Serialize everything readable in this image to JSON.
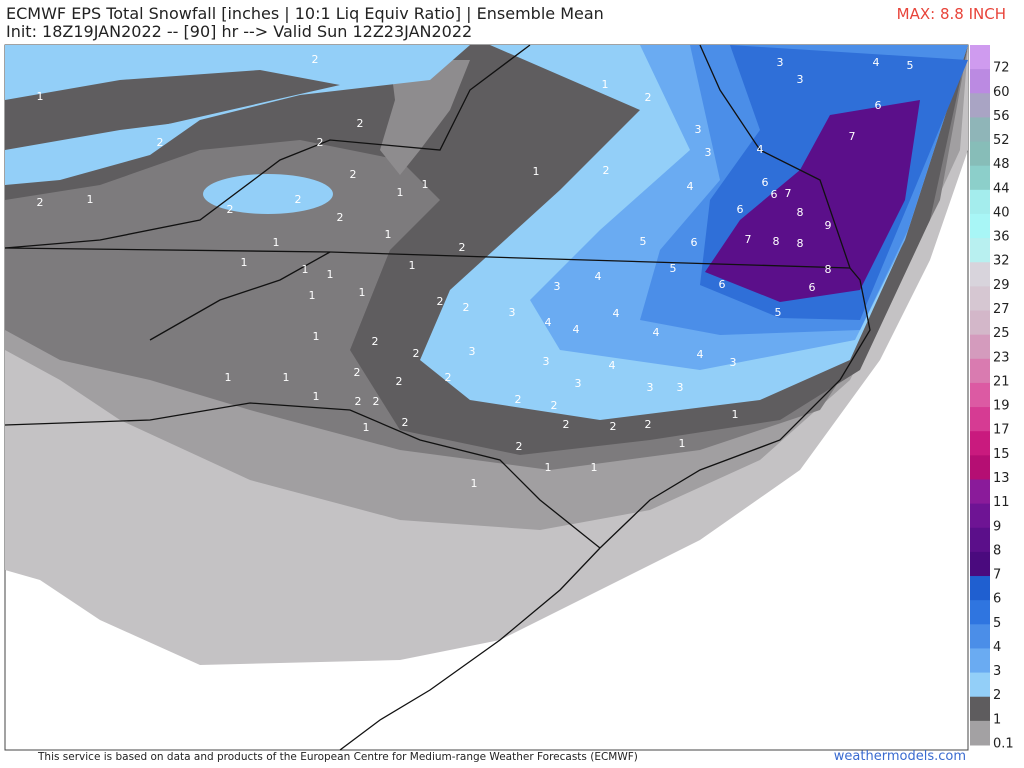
{
  "header": {
    "title": "ECMWF EPS Total Snowfall [inches | 10:1 Liq Equiv Ratio] | Ensemble Mean",
    "subtitle": "Init: 18Z19JAN2022 -- [90] hr --> Valid Sun 12Z23JAN2022",
    "max_label": "MAX: 8.8 INCH"
  },
  "colorbar": {
    "labels": [
      72,
      60,
      56,
      52,
      48,
      44,
      40,
      36,
      32,
      29,
      27,
      25,
      23,
      21,
      19,
      17,
      15,
      13,
      11,
      9,
      8,
      7,
      6,
      5,
      4,
      3,
      2,
      1,
      0.1
    ],
    "colors": [
      "#cf9bef",
      "#bb8ae2",
      "#a9a4c4",
      "#8fb5b8",
      "#87bdb8",
      "#8ccfca",
      "#a4eded",
      "#a8f6f6",
      "#b8f0f0",
      "#d8d4dc",
      "#d6c7d2",
      "#d3b7c9",
      "#d49bbd",
      "#d97bb0",
      "#dc5aa3",
      "#d63b93",
      "#c91a7e",
      "#b50e73",
      "#8a1b9a",
      "#6e1494",
      "#5b0f8a",
      "#4a0a7e",
      "#1f5fd0",
      "#2f75e0",
      "#4b8ee8",
      "#6aabf2",
      "#93cff8",
      "#5e5c5e",
      "#a3a1a3"
    ]
  },
  "map_labels": [
    2,
    1,
    2,
    2,
    2,
    2,
    2,
    1,
    2,
    2,
    1,
    1,
    2,
    1,
    1,
    1,
    2,
    1,
    1,
    1,
    1,
    1,
    2,
    2,
    3,
    4,
    3,
    4,
    4,
    4,
    5,
    6,
    5,
    6,
    4,
    4,
    3,
    2,
    1,
    1,
    2,
    3,
    3,
    4,
    4,
    6,
    6,
    6,
    7,
    8,
    7,
    8,
    8,
    9,
    7,
    6,
    4,
    5,
    3,
    3,
    8,
    6,
    5,
    3,
    3,
    2,
    2,
    3,
    2,
    2,
    2,
    2,
    2,
    1,
    1,
    1,
    1,
    2,
    2,
    2,
    1,
    2,
    1,
    1,
    1,
    1,
    1,
    2,
    2,
    2,
    3,
    4,
    3
  ],
  "footer": {
    "credit": "This service is based on data and products of the European Centre for Medium-range Weather Forecasts (ECMWF)",
    "site": "weathermodels.com"
  }
}
